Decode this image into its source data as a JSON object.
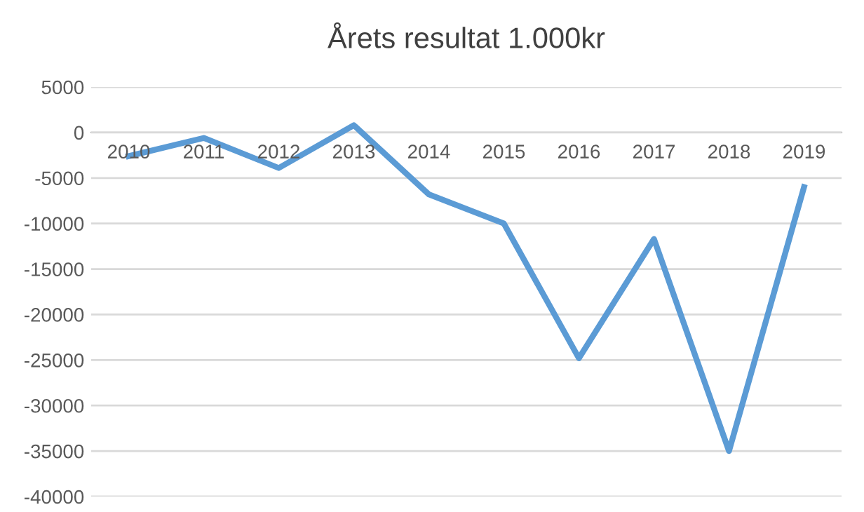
{
  "chart_data": {
    "type": "line",
    "title": "Årets resultat 1.000kr",
    "categories": [
      "2010",
      "2011",
      "2012",
      "2013",
      "2014",
      "2015",
      "2016",
      "2017",
      "2018",
      "2019"
    ],
    "series": [
      {
        "color": "#5b9bd5",
        "values": [
          -2600,
          -600,
          -3900,
          800,
          -6800,
          -10000,
          -24800,
          -11700,
          -35000,
          -6000
        ]
      }
    ],
    "ylim": [
      -40000,
      5000
    ],
    "yticks": [
      5000,
      0,
      -5000,
      -10000,
      -15000,
      -20000,
      -25000,
      -30000,
      -35000,
      -40000
    ],
    "grid": "y",
    "legend": false,
    "marker": "none",
    "line_style": "solid"
  }
}
